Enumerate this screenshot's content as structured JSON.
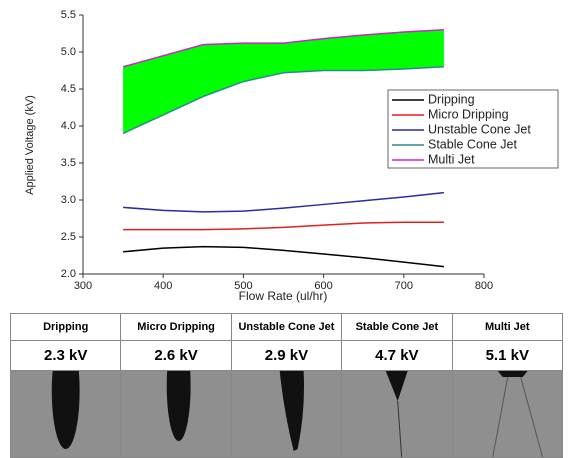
{
  "chart_data": {
    "type": "line",
    "y_label": "Applied Voltage (kV)",
    "x_label": "Flow Rate (ul/hr)",
    "x": [
      350,
      400,
      450,
      500,
      550,
      600,
      650,
      700,
      750
    ],
    "series": [
      {
        "name": "Dripping",
        "color": "#000000",
        "values": [
          2.3,
          2.35,
          2.37,
          2.36,
          2.32,
          2.27,
          2.22,
          2.16,
          2.1
        ]
      },
      {
        "name": "Micro Dripping",
        "color": "#e0201a",
        "values": [
          2.6,
          2.6,
          2.6,
          2.61,
          2.63,
          2.66,
          2.69,
          2.7,
          2.7
        ]
      },
      {
        "name": "Unstable Cone Jet",
        "color": "#2a2aa8",
        "values": [
          2.9,
          2.86,
          2.84,
          2.85,
          2.89,
          2.94,
          2.99,
          3.04,
          3.1
        ]
      },
      {
        "name": "Stable Cone Jet",
        "color": "#2a8a8a",
        "values": [
          3.9,
          4.15,
          4.4,
          4.6,
          4.72,
          4.75,
          4.75,
          4.77,
          4.8
        ]
      },
      {
        "name": "Multi Jet",
        "color": "#d020d0",
        "values": [
          4.8,
          4.95,
          5.1,
          5.12,
          5.12,
          5.18,
          5.23,
          5.27,
          5.3
        ]
      }
    ],
    "fill_between_color": "#00ff00",
    "xlim": [
      300,
      800
    ],
    "xticks": [
      300,
      400,
      500,
      600,
      700,
      800
    ],
    "ylim": [
      2,
      5.5
    ],
    "yticks": [
      {
        "value": 2,
        "label": "2.0"
      },
      2.5,
      {
        "value": 3,
        "label": "3.0"
      },
      3.5,
      {
        "value": 4,
        "label": "4.0"
      },
      4.5,
      {
        "value": 5,
        "label": "5.0"
      },
      5.5
    ],
    "legend": "right"
  },
  "table": {
    "headers": [
      "Dripping",
      "Micro Dripping",
      "Unstable Cone Jet",
      "Stable Cone Jet",
      "Multi Jet"
    ],
    "rows": [
      [
        "2.3 kV",
        "2.6 kV",
        "2.9 kV",
        "4.7 kV",
        "5.1 kV"
      ]
    ]
  }
}
